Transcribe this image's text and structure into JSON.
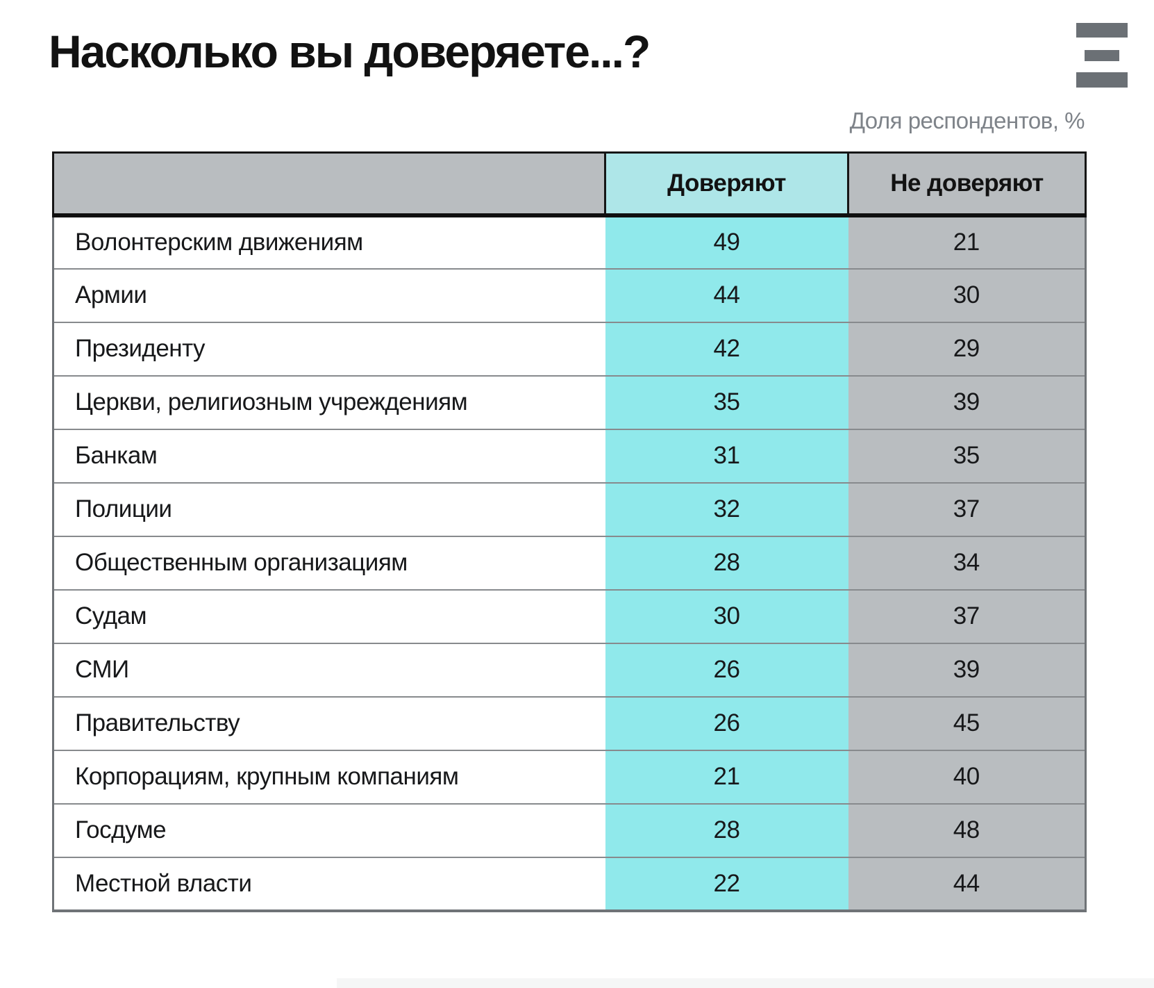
{
  "page": {
    "title": "Насколько вы доверяете...?",
    "subtitle": "Доля респондентов, %"
  },
  "logo": {
    "name": "three-bars-logo"
  },
  "colors": {
    "cyan_header": "#aee6e8",
    "cyan_cell": "#90e9eb",
    "gray_cell": "#b9bdc0",
    "logo_gray": "#6b7075"
  },
  "chart_data": {
    "type": "table",
    "title": "Насколько вы доверяете...?",
    "unit_note": "Доля респондентов, %",
    "columns": [
      "",
      "Доверяют",
      "Не доверяют"
    ],
    "rows": [
      {
        "label": "Волонтерским движениям",
        "trust": 49,
        "distrust": 21
      },
      {
        "label": "Армии",
        "trust": 44,
        "distrust": 30
      },
      {
        "label": "Президенту",
        "trust": 42,
        "distrust": 29
      },
      {
        "label": "Церкви, религиозным учреждениям",
        "trust": 35,
        "distrust": 39
      },
      {
        "label": "Банкам",
        "trust": 31,
        "distrust": 35
      },
      {
        "label": "Полиции",
        "trust": 32,
        "distrust": 37
      },
      {
        "label": "Общественным организациям",
        "trust": 28,
        "distrust": 34
      },
      {
        "label": "Судам",
        "trust": 30,
        "distrust": 37
      },
      {
        "label": "СМИ",
        "trust": 26,
        "distrust": 39
      },
      {
        "label": "Правительству",
        "trust": 26,
        "distrust": 45
      },
      {
        "label": "Корпорациям, крупным компаниям",
        "trust": 21,
        "distrust": 40
      },
      {
        "label": "Госдуме",
        "trust": 28,
        "distrust": 48
      },
      {
        "label": "Местной власти",
        "trust": 22,
        "distrust": 44
      }
    ]
  }
}
